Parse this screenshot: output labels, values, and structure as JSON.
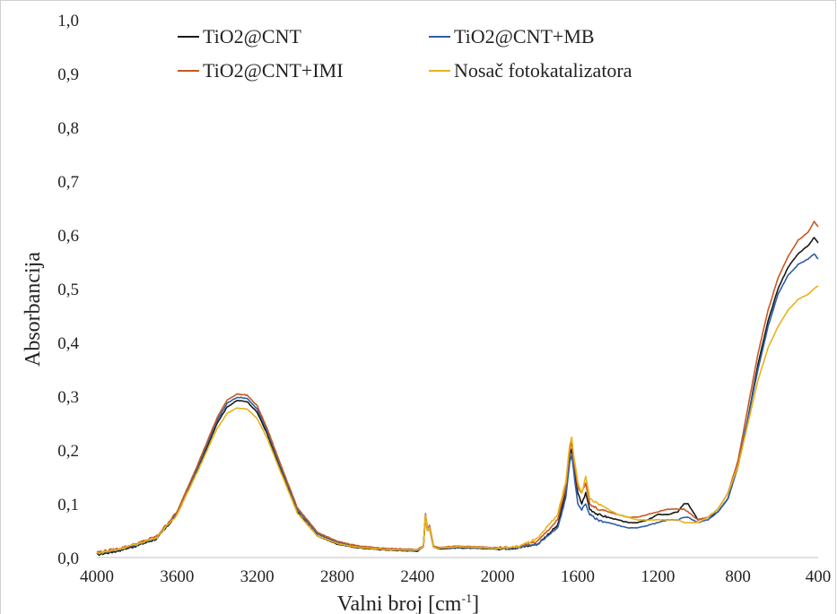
{
  "chart_data": {
    "type": "line",
    "title": "",
    "xlabel": "Valni broj [cm",
    "xlabel_superscript": "-1",
    "xlabel_suffix": "]",
    "ylabel": "Absorbancija",
    "xlim": [
      4000,
      400
    ],
    "ylim": [
      0,
      1.0
    ],
    "x_reversed": true,
    "x_ticks": [
      "4000",
      "3600",
      "3200",
      "2800",
      "2400",
      "2000",
      "1600",
      "1200",
      "800",
      "400"
    ],
    "y_ticks": [
      "0,0",
      "0,1",
      "0,2",
      "0,3",
      "0,4",
      "0,5",
      "0,6",
      "0,7",
      "0,8",
      "0,9",
      "1,0"
    ],
    "grid": false,
    "legend_position": "top",
    "series": [
      {
        "name": "TiO2@CNT",
        "color": "#1a1a1a",
        "x": [
          4000,
          3900,
          3800,
          3700,
          3600,
          3500,
          3400,
          3350,
          3300,
          3250,
          3200,
          3150,
          3100,
          3000,
          2900,
          2800,
          2700,
          2600,
          2500,
          2400,
          2370,
          2360,
          2350,
          2340,
          2320,
          2300,
          2200,
          2100,
          2000,
          1900,
          1800,
          1700,
          1660,
          1640,
          1630,
          1620,
          1600,
          1580,
          1560,
          1540,
          1500,
          1450,
          1400,
          1350,
          1300,
          1250,
          1200,
          1150,
          1100,
          1070,
          1050,
          1000,
          950,
          900,
          850,
          800,
          750,
          700,
          650,
          600,
          550,
          500,
          450,
          420,
          400
        ],
        "y": [
          0.005,
          0.012,
          0.022,
          0.035,
          0.08,
          0.16,
          0.25,
          0.28,
          0.292,
          0.29,
          0.27,
          0.23,
          0.18,
          0.085,
          0.04,
          0.025,
          0.018,
          0.015,
          0.013,
          0.012,
          0.02,
          0.075,
          0.05,
          0.055,
          0.02,
          0.016,
          0.018,
          0.017,
          0.016,
          0.018,
          0.025,
          0.06,
          0.12,
          0.19,
          0.2,
          0.17,
          0.12,
          0.1,
          0.12,
          0.09,
          0.08,
          0.075,
          0.07,
          0.065,
          0.065,
          0.07,
          0.08,
          0.08,
          0.085,
          0.1,
          0.1,
          0.07,
          0.075,
          0.085,
          0.11,
          0.17,
          0.26,
          0.36,
          0.44,
          0.5,
          0.54,
          0.565,
          0.58,
          0.595,
          0.585
        ]
      },
      {
        "name": "TiO2@CNT+MB",
        "color": "#2e5ea7",
        "x": [
          4000,
          3900,
          3800,
          3700,
          3600,
          3500,
          3400,
          3350,
          3300,
          3250,
          3200,
          3150,
          3100,
          3000,
          2900,
          2800,
          2700,
          2600,
          2500,
          2400,
          2370,
          2360,
          2350,
          2340,
          2320,
          2300,
          2200,
          2100,
          2000,
          1900,
          1800,
          1700,
          1660,
          1640,
          1630,
          1620,
          1600,
          1580,
          1560,
          1540,
          1500,
          1450,
          1400,
          1350,
          1300,
          1250,
          1200,
          1150,
          1100,
          1070,
          1050,
          1000,
          950,
          900,
          850,
          800,
          750,
          700,
          650,
          600,
          550,
          500,
          450,
          420,
          400
        ],
        "y": [
          0.008,
          0.014,
          0.024,
          0.037,
          0.082,
          0.165,
          0.255,
          0.287,
          0.298,
          0.296,
          0.276,
          0.235,
          0.185,
          0.09,
          0.044,
          0.028,
          0.02,
          0.016,
          0.014,
          0.013,
          0.02,
          0.08,
          0.05,
          0.058,
          0.02,
          0.017,
          0.019,
          0.018,
          0.016,
          0.018,
          0.025,
          0.055,
          0.11,
          0.18,
          0.19,
          0.16,
          0.1,
          0.09,
          0.1,
          0.08,
          0.07,
          0.065,
          0.06,
          0.055,
          0.055,
          0.06,
          0.065,
          0.07,
          0.07,
          0.075,
          0.075,
          0.065,
          0.07,
          0.085,
          0.11,
          0.17,
          0.26,
          0.35,
          0.43,
          0.49,
          0.525,
          0.545,
          0.555,
          0.565,
          0.555
        ]
      },
      {
        "name": "TiO2@CNT+IMI",
        "color": "#c65a24",
        "x": [
          4000,
          3900,
          3800,
          3700,
          3600,
          3500,
          3400,
          3350,
          3300,
          3250,
          3200,
          3150,
          3100,
          3000,
          2900,
          2800,
          2700,
          2600,
          2500,
          2400,
          2370,
          2360,
          2350,
          2340,
          2320,
          2300,
          2200,
          2100,
          2000,
          1900,
          1800,
          1700,
          1660,
          1640,
          1630,
          1620,
          1600,
          1580,
          1560,
          1540,
          1500,
          1450,
          1400,
          1350,
          1300,
          1250,
          1200,
          1150,
          1100,
          1070,
          1050,
          1000,
          950,
          900,
          850,
          800,
          750,
          700,
          650,
          600,
          550,
          500,
          450,
          420,
          400
        ],
        "y": [
          0.01,
          0.016,
          0.026,
          0.04,
          0.085,
          0.17,
          0.26,
          0.293,
          0.304,
          0.302,
          0.282,
          0.24,
          0.19,
          0.093,
          0.047,
          0.03,
          0.022,
          0.018,
          0.016,
          0.015,
          0.022,
          0.082,
          0.052,
          0.06,
          0.022,
          0.019,
          0.021,
          0.02,
          0.018,
          0.02,
          0.03,
          0.07,
          0.13,
          0.2,
          0.215,
          0.18,
          0.13,
          0.12,
          0.14,
          0.1,
          0.09,
          0.085,
          0.08,
          0.075,
          0.075,
          0.08,
          0.085,
          0.09,
          0.09,
          0.09,
          0.085,
          0.07,
          0.075,
          0.09,
          0.12,
          0.18,
          0.28,
          0.38,
          0.46,
          0.52,
          0.56,
          0.59,
          0.605,
          0.625,
          0.615
        ]
      },
      {
        "name": "Nosač fotokatalizatora",
        "color": "#e8b21a",
        "x": [
          4000,
          3900,
          3800,
          3700,
          3600,
          3500,
          3400,
          3350,
          3300,
          3250,
          3200,
          3150,
          3100,
          3000,
          2900,
          2800,
          2700,
          2600,
          2500,
          2400,
          2370,
          2360,
          2350,
          2340,
          2320,
          2300,
          2200,
          2100,
          2000,
          1900,
          1800,
          1700,
          1660,
          1640,
          1630,
          1620,
          1600,
          1580,
          1560,
          1540,
          1500,
          1450,
          1400,
          1350,
          1300,
          1250,
          1200,
          1150,
          1100,
          1070,
          1050,
          1000,
          950,
          900,
          850,
          800,
          750,
          700,
          650,
          600,
          550,
          500,
          450,
          420,
          400
        ],
        "y": [
          0.008,
          0.015,
          0.025,
          0.038,
          0.08,
          0.158,
          0.24,
          0.268,
          0.278,
          0.276,
          0.258,
          0.222,
          0.175,
          0.083,
          0.04,
          0.026,
          0.019,
          0.016,
          0.014,
          0.014,
          0.02,
          0.078,
          0.05,
          0.056,
          0.02,
          0.017,
          0.02,
          0.019,
          0.017,
          0.02,
          0.035,
          0.08,
          0.14,
          0.21,
          0.222,
          0.19,
          0.14,
          0.12,
          0.15,
          0.11,
          0.1,
          0.09,
          0.08,
          0.075,
          0.07,
          0.07,
          0.07,
          0.07,
          0.07,
          0.065,
          0.065,
          0.065,
          0.075,
          0.09,
          0.12,
          0.17,
          0.25,
          0.33,
          0.39,
          0.43,
          0.46,
          0.48,
          0.49,
          0.5,
          0.505
        ]
      }
    ]
  }
}
